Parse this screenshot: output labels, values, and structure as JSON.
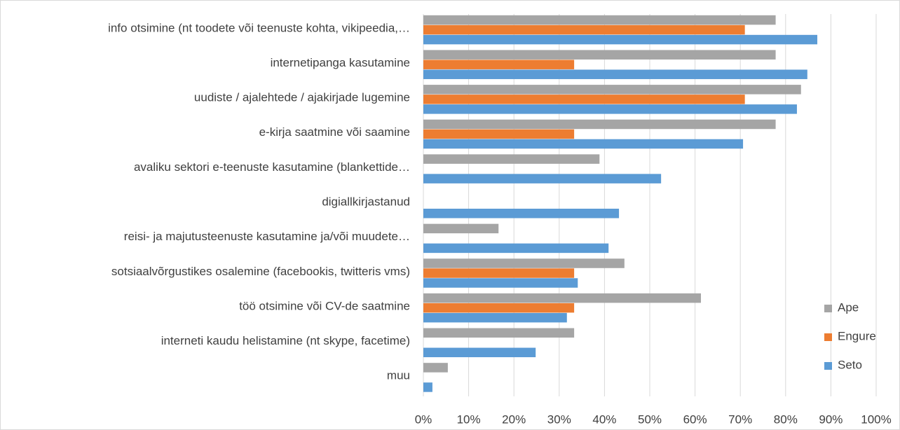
{
  "chart_data": {
    "type": "hbar",
    "categories": [
      "info otsimine (nt toodete või teenuste kohta, vikipeedia,…",
      "internetipanga kasutamine",
      "uudiste / ajalehtede / ajakirjade lugemine",
      "e-kirja saatmine või saamine",
      "avaliku sektori e-teenuste kasutamine (blankettide…",
      "digiallkirjastanud",
      "reisi- ja majutusteenuste kasutamine ja/või muudete…",
      "sotsiaalvõrgustikes osalemine (facebookis, twitteris vms)",
      "töö otsimine või CV-de saatmine",
      "interneti kaudu helistamine (nt skype, facetime)",
      "muu"
    ],
    "series": [
      {
        "name": "Ape",
        "color": "#a5a5a5",
        "values": [
          77.8,
          77.8,
          83.4,
          77.8,
          38.9,
          0,
          16.6,
          44.4,
          61.3,
          33.3,
          5.4
        ]
      },
      {
        "name": "Engure",
        "color": "#ed7d31",
        "values": [
          71,
          33.3,
          71,
          33.3,
          0,
          0,
          0,
          33.3,
          33.3,
          0,
          0
        ]
      },
      {
        "name": "Seto",
        "color": "#5b9bd5",
        "values": [
          87,
          84.8,
          82.5,
          70.6,
          52.5,
          43.2,
          40.9,
          34.1,
          31.7,
          24.8,
          2.0
        ]
      }
    ],
    "xlim": [
      0,
      100
    ],
    "xticks": [
      {
        "value": 0,
        "label": "0%"
      },
      {
        "value": 10,
        "label": "10%"
      },
      {
        "value": 20,
        "label": "20%"
      },
      {
        "value": 30,
        "label": "30%"
      },
      {
        "value": 40,
        "label": "40%"
      },
      {
        "value": 50,
        "label": "50%"
      },
      {
        "value": 60,
        "label": "60%"
      },
      {
        "value": 70,
        "label": "70%"
      },
      {
        "value": 80,
        "label": "80%"
      },
      {
        "value": 90,
        "label": "90%"
      },
      {
        "value": 100,
        "label": "100%"
      }
    ],
    "grid": true,
    "legend": "right"
  }
}
